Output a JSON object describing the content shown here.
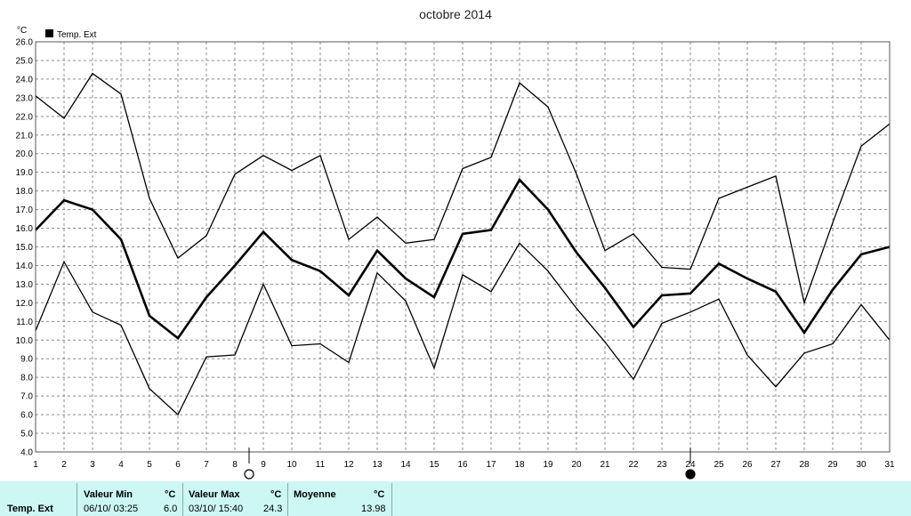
{
  "chart_data": {
    "type": "line",
    "title": "octobre 2014",
    "ylabel": "°C",
    "legend": {
      "label": "Temp. Ext",
      "placement": "top-left"
    },
    "ylim": [
      4.0,
      26.0
    ],
    "y_ticks": [
      "4.0",
      "5.0",
      "6.0",
      "7.0",
      "8.0",
      "9.0",
      "10.0",
      "11.0",
      "12.0",
      "13.0",
      "14.0",
      "15.0",
      "16.0",
      "17.0",
      "18.0",
      "19.0",
      "20.0",
      "21.0",
      "22.0",
      "23.0",
      "24.0",
      "25.0",
      "26.0"
    ],
    "x": [
      "1",
      "2",
      "3",
      "4",
      "5",
      "6",
      "7",
      "8",
      "9",
      "10",
      "11",
      "12",
      "13",
      "14",
      "15",
      "16",
      "17",
      "18",
      "19",
      "20",
      "21",
      "22",
      "23",
      "24",
      "25",
      "26",
      "27",
      "28",
      "29",
      "30",
      "31"
    ],
    "grid": true,
    "series": [
      {
        "values": [
          23.1,
          21.9,
          24.3,
          23.2,
          17.6,
          14.4,
          15.6,
          18.9,
          19.9,
          19.1,
          19.9,
          15.4,
          16.6,
          15.2,
          15.4,
          19.2,
          19.8,
          23.8,
          22.5,
          18.9,
          14.8,
          15.7,
          13.9,
          13.8,
          17.6,
          18.2,
          18.8,
          12.0,
          16.3,
          20.4,
          21.6
        ]
      },
      {
        "values": [
          15.9,
          17.5,
          17.0,
          15.4,
          11.3,
          10.1,
          12.3,
          14.0,
          15.8,
          14.3,
          13.7,
          12.4,
          14.8,
          13.3,
          12.3,
          15.7,
          15.9,
          18.6,
          17.0,
          14.7,
          12.8,
          10.7,
          12.4,
          12.5,
          14.1,
          13.3,
          12.6,
          10.4,
          12.7,
          14.6,
          15.0
        ]
      },
      {
        "values": [
          10.5,
          14.2,
          11.5,
          10.8,
          7.4,
          6.0,
          9.1,
          9.2,
          13.0,
          9.7,
          9.8,
          8.8,
          13.6,
          12.1,
          8.5,
          13.5,
          12.6,
          15.2,
          13.7,
          11.7,
          9.9,
          7.9,
          10.9,
          11.5,
          12.2,
          9.2,
          7.5,
          9.3,
          9.8,
          11.9,
          10.0
        ]
      }
    ],
    "moon_phases": [
      {
        "day": 8.5,
        "phase": "full"
      },
      {
        "day": 24,
        "phase": "new"
      }
    ]
  },
  "colors": {
    "line": "#000000",
    "grid": "#8c8c8c",
    "footer_bg": "#ccf7f4"
  },
  "footer": {
    "row_label": "Temp. Ext",
    "min": {
      "label": "Valeur Min",
      "unit": "°C",
      "date": "06/10/  03:25",
      "value": "6.0"
    },
    "max": {
      "label": "Valeur Max",
      "unit": "°C",
      "date": "03/10/  15:40",
      "value": "24.3"
    },
    "avg": {
      "label": "Moyenne",
      "unit": "°C",
      "value": "13.98"
    }
  }
}
